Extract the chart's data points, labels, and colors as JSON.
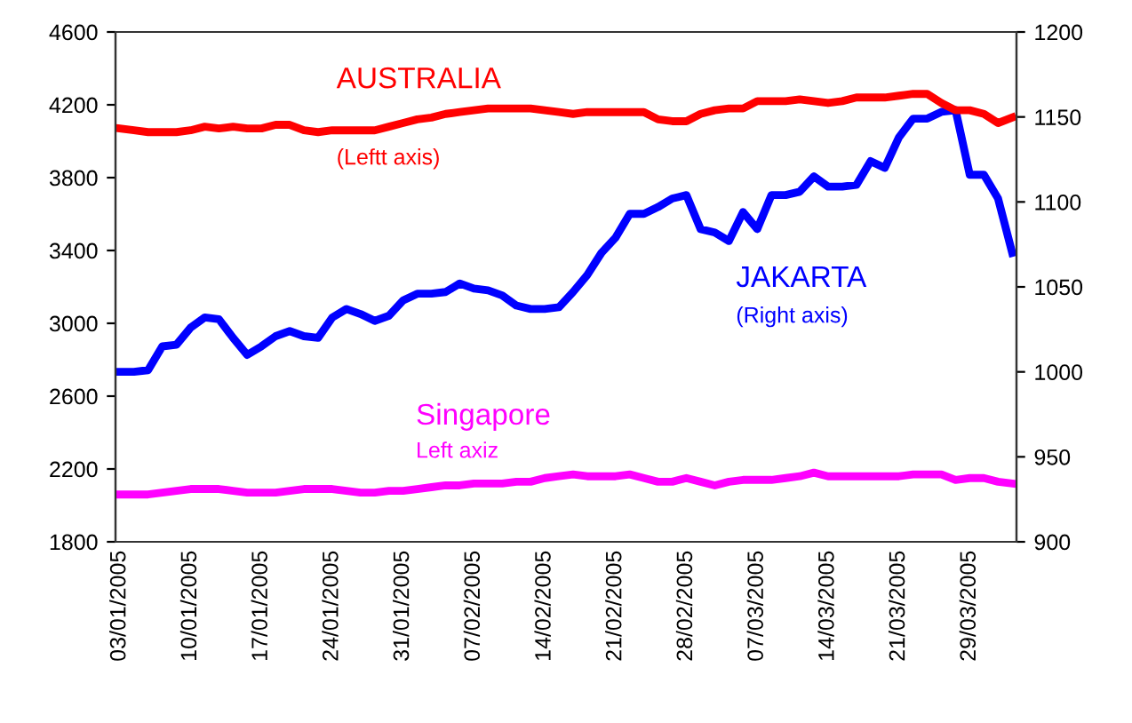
{
  "chart_data": {
    "type": "line",
    "categories": [
      "03/01/2005",
      null,
      null,
      null,
      null,
      "10/01/2005",
      null,
      null,
      null,
      null,
      "17/01/2005",
      null,
      null,
      null,
      null,
      "24/01/2005",
      null,
      null,
      null,
      null,
      "31/01/2005",
      null,
      null,
      null,
      null,
      "07/02/2005",
      null,
      null,
      null,
      null,
      "14/02/2005",
      null,
      null,
      null,
      null,
      "21/02/2005",
      null,
      null,
      null,
      null,
      "28/02/2005",
      null,
      null,
      null,
      null,
      "07/03/2005",
      null,
      null,
      null,
      null,
      "14/03/2005",
      null,
      null,
      null,
      null,
      "21/03/2005",
      null,
      null,
      null,
      null,
      "29/03/2005",
      null,
      null,
      null
    ],
    "series": [
      {
        "name": "AUSTRALIA",
        "color": "#ff0000",
        "values": [
          4070,
          4060,
          4050,
          4050,
          4050,
          4060,
          4080,
          4070,
          4080,
          4070,
          4070,
          4090,
          4090,
          4060,
          4050,
          4060,
          4060,
          4060,
          4060,
          4080,
          4100,
          4120,
          4130,
          4150,
          4160,
          4170,
          4180,
          4180,
          4180,
          4180,
          4170,
          4160,
          4150,
          4160,
          4160,
          4160,
          4160,
          4160,
          4120,
          4110,
          4110,
          4150,
          4170,
          4180,
          4180,
          4220,
          4220,
          4220,
          4230,
          4220,
          4210,
          4220,
          4240,
          4240,
          4240,
          4250,
          4260,
          4260,
          4210,
          4170,
          4170,
          4150,
          4100,
          4130
        ]
      },
      {
        "name": "JAKARTA",
        "color": "#0000ff",
        "axis": "y2",
        "values": [
          1000,
          1000,
          1001,
          1015,
          1016,
          1026,
          1032,
          1031,
          1020,
          1010,
          1015,
          1021,
          1024,
          1021,
          1020,
          1032,
          1037,
          1034,
          1030,
          1033,
          1042,
          1046,
          1046,
          1047,
          1052,
          1049,
          1048,
          1045,
          1039,
          1037,
          1037,
          1038,
          1047,
          1057,
          1070,
          1079,
          1093,
          1093,
          1097,
          1102,
          1104,
          1084,
          1082,
          1077,
          1094,
          1084,
          1104,
          1104,
          1106,
          1115,
          1109,
          1109,
          1110,
          1124,
          1120,
          1138,
          1149,
          1149,
          1153,
          1154,
          1116,
          1116,
          1102,
          1070
        ]
      },
      {
        "name": "Singapore",
        "color": "#ff00ff",
        "values": [
          2060,
          2060,
          2060,
          2070,
          2080,
          2090,
          2090,
          2090,
          2080,
          2070,
          2070,
          2070,
          2080,
          2090,
          2090,
          2090,
          2080,
          2070,
          2070,
          2080,
          2080,
          2090,
          2100,
          2110,
          2110,
          2120,
          2120,
          2120,
          2130,
          2130,
          2150,
          2160,
          2170,
          2160,
          2160,
          2160,
          2170,
          2150,
          2130,
          2130,
          2150,
          2130,
          2110,
          2130,
          2140,
          2140,
          2140,
          2150,
          2160,
          2180,
          2160,
          2160,
          2160,
          2160,
          2160,
          2160,
          2170,
          2170,
          2170,
          2140,
          2150,
          2150,
          2130,
          2120
        ]
      }
    ],
    "annotations": [
      "(Leftt axis)",
      "(Right axis)",
      "Left axiz"
    ],
    "ylim": [
      1800,
      4600
    ],
    "yticks": [
      1800,
      2200,
      2600,
      3000,
      3400,
      3800,
      4200,
      4600
    ],
    "y2lim": [
      900,
      1200
    ],
    "y2ticks": [
      900,
      950,
      1000,
      1050,
      1100,
      1150,
      1200
    ],
    "grid": false,
    "legend": false
  }
}
